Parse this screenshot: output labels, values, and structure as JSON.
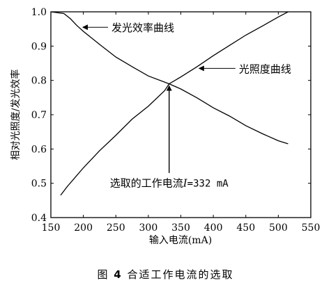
{
  "chart_data": {
    "type": "line",
    "xlabel": "输入电流(mA)",
    "ylabel": "相对光照度/发光效率",
    "xlim": [
      150,
      550
    ],
    "ylim": [
      0.4,
      1.0
    ],
    "xticks": [
      150,
      200,
      250,
      300,
      350,
      400,
      450,
      500,
      550
    ],
    "yticks": [
      0.4,
      0.5,
      0.6,
      0.7,
      0.8,
      0.9,
      1.0
    ],
    "grid": false,
    "series": [
      {
        "name": "发光效率曲线",
        "x": [
          150,
          170,
          180,
          190,
          200,
          225,
          250,
          275,
          300,
          325,
          332,
          350,
          375,
          400,
          425,
          450,
          475,
          500,
          515
        ],
        "y": [
          1.0,
          0.995,
          0.98,
          0.96,
          0.943,
          0.905,
          0.868,
          0.84,
          0.813,
          0.795,
          0.79,
          0.775,
          0.749,
          0.72,
          0.696,
          0.668,
          0.645,
          0.624,
          0.615
        ]
      },
      {
        "name": "光照度曲线",
        "x": [
          165,
          175,
          200,
          225,
          250,
          275,
          300,
          325,
          332,
          350,
          375,
          400,
          425,
          450,
          475,
          500,
          515
        ],
        "y": [
          0.465,
          0.49,
          0.545,
          0.595,
          0.64,
          0.687,
          0.725,
          0.77,
          0.79,
          0.81,
          0.84,
          0.872,
          0.902,
          0.932,
          0.958,
          0.985,
          1.0
        ]
      }
    ],
    "annotations": [
      {
        "text": "发光效率曲线",
        "x": 195,
        "y": 0.955
      },
      {
        "text": "光照度曲线",
        "x": 375,
        "y": 0.835
      },
      {
        "text_prefix": "选取的工作电流",
        "text_var": "I",
        "text_suffix": "=332 mA",
        "x": 332,
        "y": 0.79
      }
    ]
  },
  "caption": {
    "prefix": "图",
    "number": "4",
    "text": "合适工作电流的选取"
  }
}
